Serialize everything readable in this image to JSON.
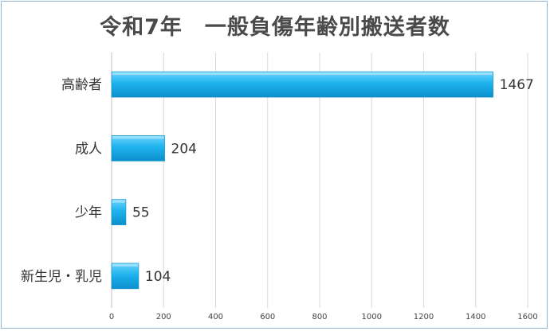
{
  "chart_data": {
    "type": "bar",
    "orientation": "horizontal",
    "title": "令和7年　一般負傷年齢別搬送者数",
    "categories": [
      "高齢者",
      "成人",
      "少年",
      "新生児・乳児"
    ],
    "values": [
      1467,
      204,
      55,
      104
    ],
    "xlim": [
      0,
      1600
    ],
    "xticks": [
      0,
      200,
      400,
      600,
      800,
      1000,
      1200,
      1400,
      1600
    ],
    "grid": true,
    "legend": "none",
    "colors": {
      "bar": "#1eb3ee",
      "bar_dark": "#0b8fcb",
      "grid": "#d9d9d9"
    }
  }
}
